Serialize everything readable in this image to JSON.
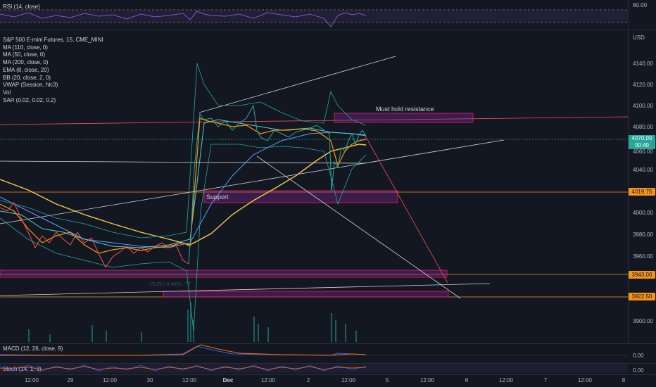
{
  "rsi": {
    "label": "RSI (14, close)",
    "level": "80.00"
  },
  "main_legend": {
    "title": "S&P 500 E-mini Futures, 15, CME_MINI",
    "indicators": [
      "MA (110, close, 0)",
      "MA (50, close, 0)",
      "MA (200, close, 0)",
      "EMA (8, close, 20)",
      "BB (20, close, 2, 0)",
      "VWAP (Session, hlc3)",
      "Vol",
      "SAR (0.02, 0.02, 0.2)"
    ]
  },
  "currency": "USD",
  "price_ticks": [
    "4140.00",
    "4120.00",
    "4100.00",
    "4080.00",
    "4060.00",
    "4040.00",
    "4000.00",
    "3980.00",
    "3960.00",
    "3900.00"
  ],
  "price_tags": {
    "last": "4070.00",
    "countdown": "00:40",
    "support": "4019.75",
    "target1": "3943.00",
    "target2": "3922.50"
  },
  "annotations": {
    "resistance": "Must hold resistance",
    "support": "Support",
    "measure": "-19.25 (-0.46%) -77"
  },
  "macd": {
    "label": "MACD (12, 26, close, 9)",
    "value": "0.00"
  },
  "stoch": {
    "label": "Stoch (14, 1, 3)",
    "value": "0.00"
  },
  "time_axis": [
    "12:00",
    "29",
    "12:00",
    "30",
    "12:00",
    "Dec",
    "12:00",
    "2",
    "12:00",
    "5",
    "12:00",
    "6",
    "12:00",
    "7",
    "12:00",
    "8"
  ],
  "colors": {
    "background": "#131722",
    "last_price": "#26a69a",
    "orange_level": "#f7931a",
    "zone": "#9c27b0",
    "rsi_line": "#7e57c2"
  }
}
